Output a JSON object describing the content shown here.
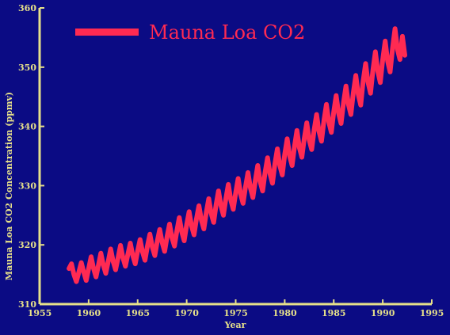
{
  "colors": {
    "background": "#0b0b84",
    "frame": "#000000",
    "axis": "#e6e08a",
    "series": "#ff2a52",
    "legend_text": "#ff2a52"
  },
  "chart_data": {
    "type": "line",
    "title": "",
    "xlabel": "Year",
    "ylabel": "Mauna Loa CO2 Concentration (ppmv)",
    "xlim": [
      1955,
      1995
    ],
    "ylim": [
      310,
      360
    ],
    "x_ticks": [
      1955,
      1960,
      1965,
      1970,
      1975,
      1980,
      1985,
      1990,
      1995
    ],
    "y_ticks": [
      310,
      320,
      330,
      340,
      350,
      360
    ],
    "x_tick_labels": [
      "1955",
      "1960",
      "1965",
      "1970",
      "1975",
      "1980",
      "1985",
      "1990",
      "1995"
    ],
    "y_tick_labels": [
      "310",
      "320",
      "330",
      "340",
      "350",
      "360"
    ],
    "grid": false,
    "legend": {
      "placement": "top-left",
      "entries": [
        "Mauna Loa CO2"
      ]
    },
    "series": [
      {
        "name": "Mauna Loa CO2",
        "x": [
          1958.0,
          1958.25,
          1958.5,
          1958.75,
          1959.0,
          1959.25,
          1959.5,
          1959.75,
          1960.0,
          1960.25,
          1960.5,
          1960.75,
          1961.0,
          1961.25,
          1961.5,
          1961.75,
          1962.0,
          1962.25,
          1962.5,
          1962.75,
          1963.0,
          1963.25,
          1963.5,
          1963.75,
          1964.0,
          1964.25,
          1964.5,
          1964.75,
          1965.0,
          1965.25,
          1965.5,
          1965.75,
          1966.0,
          1966.25,
          1966.5,
          1966.75,
          1967.0,
          1967.25,
          1967.5,
          1967.75,
          1968.0,
          1968.25,
          1968.5,
          1968.75,
          1969.0,
          1969.25,
          1969.5,
          1969.75,
          1970.0,
          1970.25,
          1970.5,
          1970.75,
          1971.0,
          1971.25,
          1971.5,
          1971.75,
          1972.0,
          1972.25,
          1972.5,
          1972.75,
          1973.0,
          1973.25,
          1973.5,
          1973.75,
          1974.0,
          1974.25,
          1974.5,
          1974.75,
          1975.0,
          1975.25,
          1975.5,
          1975.75,
          1976.0,
          1976.25,
          1976.5,
          1976.75,
          1977.0,
          1977.25,
          1977.5,
          1977.75,
          1978.0,
          1978.25,
          1978.5,
          1978.75,
          1979.0,
          1979.25,
          1979.5,
          1979.75,
          1980.0,
          1980.25,
          1980.5,
          1980.75,
          1981.0,
          1981.25,
          1981.5,
          1981.75,
          1982.0,
          1982.25,
          1982.5,
          1982.75,
          1983.0,
          1983.25,
          1983.5,
          1983.75,
          1984.0,
          1984.25,
          1984.5,
          1984.75,
          1985.0,
          1985.25,
          1985.5,
          1985.75,
          1986.0,
          1986.25,
          1986.5,
          1986.75,
          1987.0,
          1987.25,
          1987.5,
          1987.75,
          1988.0,
          1988.25,
          1988.5,
          1988.75,
          1989.0,
          1989.25,
          1989.5,
          1989.75,
          1990.0,
          1990.25,
          1990.5,
          1990.75,
          1991.0,
          1991.25,
          1991.5,
          1991.75,
          1992.0,
          1992.25
        ],
        "y": [
          316.0,
          316.8,
          315.0,
          313.8,
          315.4,
          317.0,
          315.4,
          314.0,
          316.0,
          318.0,
          316.0,
          314.6,
          316.6,
          318.6,
          316.6,
          315.2,
          317.2,
          319.3,
          317.2,
          315.8,
          317.8,
          319.9,
          317.8,
          316.4,
          318.4,
          320.3,
          318.2,
          316.8,
          319.0,
          320.9,
          318.8,
          317.4,
          319.8,
          321.8,
          319.6,
          318.2,
          320.6,
          322.6,
          320.4,
          318.9,
          321.4,
          323.5,
          321.2,
          319.8,
          322.4,
          324.6,
          322.2,
          320.7,
          323.4,
          325.6,
          323.2,
          321.7,
          324.4,
          326.6,
          324.2,
          322.7,
          325.5,
          327.8,
          325.3,
          323.8,
          326.8,
          329.1,
          326.6,
          325.0,
          327.8,
          330.2,
          327.6,
          326.0,
          328.8,
          331.2,
          328.6,
          327.0,
          329.8,
          332.2,
          329.6,
          328.0,
          330.9,
          333.4,
          330.7,
          329.1,
          332.2,
          334.7,
          332.0,
          330.4,
          333.7,
          336.2,
          333.4,
          331.8,
          335.3,
          337.9,
          335.0,
          333.4,
          336.7,
          339.3,
          336.4,
          334.8,
          338.0,
          340.6,
          337.7,
          336.1,
          339.4,
          342.0,
          339.1,
          337.5,
          341.0,
          343.7,
          340.7,
          339.0,
          342.5,
          345.2,
          342.2,
          340.5,
          344.0,
          346.8,
          343.7,
          342.0,
          345.7,
          348.6,
          345.4,
          343.6,
          347.7,
          350.6,
          347.4,
          345.6,
          349.6,
          352.6,
          349.3,
          347.4,
          351.3,
          354.4,
          351.0,
          349.2,
          353.2,
          356.5,
          353.0,
          351.3,
          355.2,
          352.0
        ]
      }
    ]
  }
}
